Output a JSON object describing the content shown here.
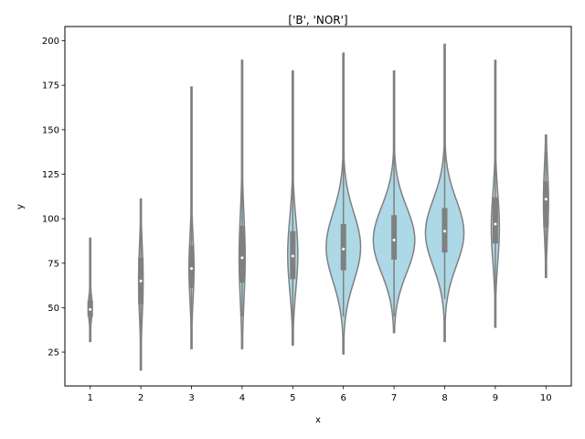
{
  "chart_data": {
    "type": "violin",
    "title": "['B', 'NOR']",
    "xlabel": "x",
    "ylabel": "y",
    "categories": [
      "1",
      "2",
      "3",
      "4",
      "5",
      "6",
      "7",
      "8",
      "9",
      "10"
    ],
    "ylim": [
      6,
      208
    ],
    "yticks": [
      25,
      50,
      75,
      100,
      125,
      150,
      175,
      200
    ],
    "grid": false,
    "colors": {
      "fill": "#add8e6",
      "stroke": "#808080",
      "box": "#808080",
      "median": "#ffffff",
      "axis": "#000000"
    },
    "series": [
      {
        "category": "1",
        "min": 31,
        "max": 89,
        "q1": 45,
        "median": 49,
        "q3": 54,
        "whisker_low": 41,
        "whisker_high": 58,
        "max_half_width": 0.04,
        "peak": 50
      },
      {
        "category": "2",
        "min": 15,
        "max": 111,
        "q1": 52,
        "median": 65,
        "q3": 78,
        "whisker_low": 30,
        "whisker_high": 100,
        "max_half_width": 0.045,
        "peak": 65
      },
      {
        "category": "3",
        "min": 27,
        "max": 174,
        "q1": 61,
        "median": 72,
        "q3": 85,
        "whisker_low": 35,
        "whisker_high": 115,
        "max_half_width": 0.05,
        "peak": 72
      },
      {
        "category": "4",
        "min": 27,
        "max": 189,
        "q1": 64,
        "median": 78,
        "q3": 96,
        "whisker_low": 45,
        "whisker_high": 130,
        "max_half_width": 0.06,
        "peak": 78
      },
      {
        "category": "5",
        "min": 29,
        "max": 183,
        "q1": 66,
        "median": 79,
        "q3": 93,
        "whisker_low": 40,
        "whisker_high": 128,
        "max_half_width": 0.1,
        "peak": 80
      },
      {
        "category": "6",
        "min": 24,
        "max": 193,
        "q1": 71,
        "median": 83,
        "q3": 97,
        "whisker_low": 45,
        "whisker_high": 135,
        "max_half_width": 0.34,
        "peak": 84
      },
      {
        "category": "7",
        "min": 36,
        "max": 183,
        "q1": 77,
        "median": 88,
        "q3": 102,
        "whisker_low": 45,
        "whisker_high": 140,
        "max_half_width": 0.41,
        "peak": 88
      },
      {
        "category": "8",
        "min": 31,
        "max": 198,
        "q1": 81,
        "median": 93,
        "q3": 106,
        "whisker_low": 55,
        "whisker_high": 145,
        "max_half_width": 0.38,
        "peak": 92
      },
      {
        "category": "9",
        "min": 39,
        "max": 189,
        "q1": 86,
        "median": 97,
        "q3": 112,
        "whisker_low": 60,
        "whisker_high": 140,
        "max_half_width": 0.08,
        "peak": 95
      },
      {
        "category": "10",
        "min": 67,
        "max": 147,
        "q1": 95,
        "median": 111,
        "q3": 121,
        "whisker_low": 77,
        "whisker_high": 138,
        "max_half_width": 0.05,
        "peak": 110
      }
    ]
  }
}
